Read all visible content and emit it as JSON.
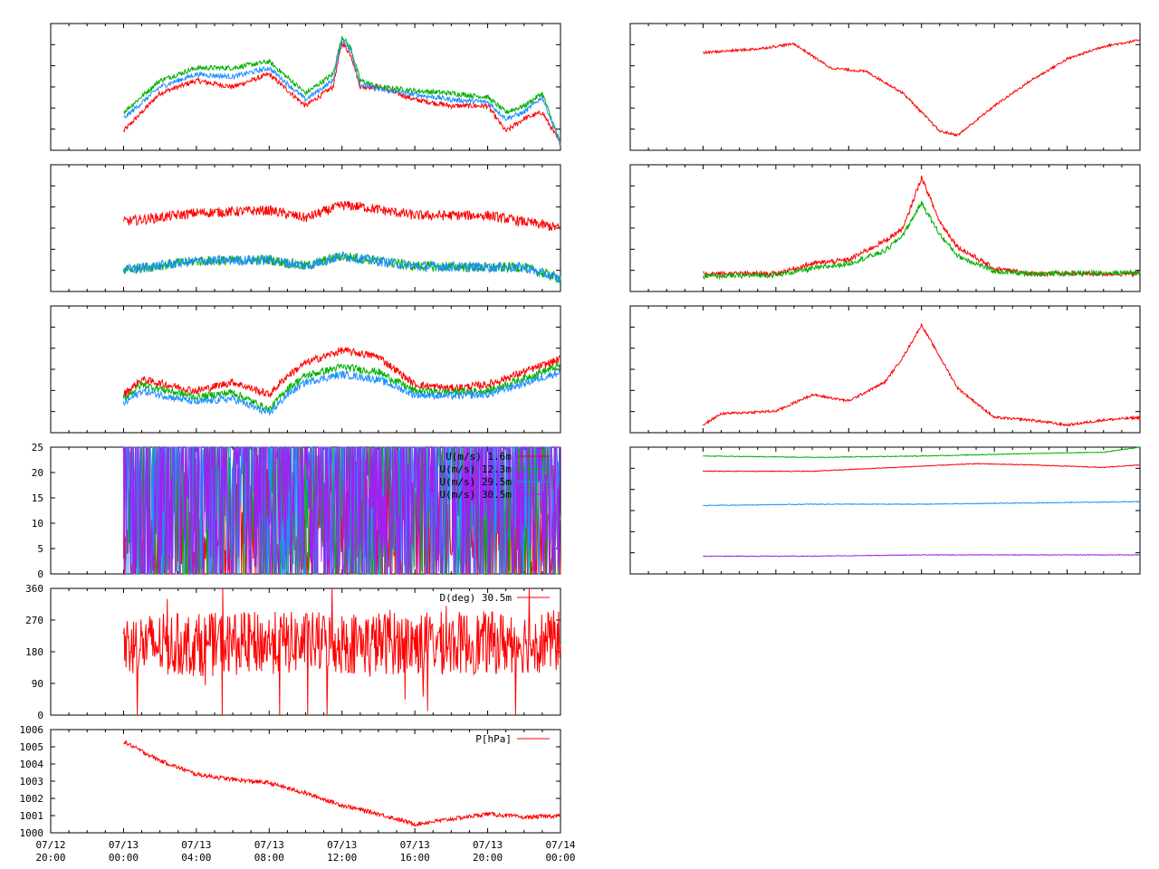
{
  "colors": {
    "red": "#ff0000",
    "green": "#00b000",
    "blue": "#1e90ff",
    "purple": "#a020f0",
    "frame": "#000000"
  },
  "chart_data": [
    {
      "type": "line",
      "panel": "left-1",
      "x_range": [
        "07/12 20:00",
        "07/14 00:00"
      ],
      "series": [
        {
          "color": "red",
          "x": [
            "07/13 00:00",
            "07/13 02:00",
            "07/13 04:00",
            "07/13 06:00",
            "07/13 08:00",
            "07/13 10:00",
            "07/13 11:30",
            "07/13 12:00",
            "07/13 12:30",
            "07/13 13:00",
            "07/13 14:00",
            "07/13 16:00",
            "07/13 18:00",
            "07/13 20:00",
            "07/13 21:00",
            "07/13 22:00",
            "07/13 23:00",
            "07/14 00:00"
          ],
          "values": [
            0.15,
            0.45,
            0.55,
            0.5,
            0.6,
            0.35,
            0.5,
            0.85,
            0.75,
            0.5,
            0.5,
            0.4,
            0.35,
            0.35,
            0.15,
            0.25,
            0.3,
            0.05
          ]
        },
        {
          "color": "green",
          "x": [
            "07/13 00:00",
            "07/13 02:00",
            "07/13 04:00",
            "07/13 06:00",
            "07/13 08:00",
            "07/13 10:00",
            "07/13 11:30",
            "07/13 12:00",
            "07/13 12:30",
            "07/13 13:00",
            "07/13 14:00",
            "07/13 16:00",
            "07/13 18:00",
            "07/13 20:00",
            "07/13 21:00",
            "07/13 22:00",
            "07/13 23:00",
            "07/14 00:00"
          ],
          "values": [
            0.3,
            0.55,
            0.65,
            0.65,
            0.7,
            0.45,
            0.6,
            0.9,
            0.8,
            0.55,
            0.5,
            0.47,
            0.45,
            0.42,
            0.3,
            0.35,
            0.45,
            0.05
          ]
        },
        {
          "color": "blue",
          "x": [
            "07/13 00:00",
            "07/13 02:00",
            "07/13 04:00",
            "07/13 06:00",
            "07/13 08:00",
            "07/13 10:00",
            "07/13 11:30",
            "07/13 12:00",
            "07/13 12:30",
            "07/13 13:00",
            "07/13 14:00",
            "07/13 16:00",
            "07/13 18:00",
            "07/13 20:00",
            "07/13 21:00",
            "07/13 22:00",
            "07/13 23:00",
            "07/14 00:00"
          ],
          "values": [
            0.25,
            0.5,
            0.6,
            0.58,
            0.65,
            0.4,
            0.55,
            0.88,
            0.78,
            0.52,
            0.48,
            0.44,
            0.4,
            0.38,
            0.25,
            0.3,
            0.42,
            0.05
          ]
        }
      ]
    },
    {
      "type": "line",
      "panel": "left-2",
      "x_range": [
        "07/12 20:00",
        "07/14 00:00"
      ],
      "series": [
        {
          "color": "red",
          "x": [
            "07/13 00:00",
            "07/13 04:00",
            "07/13 08:00",
            "07/13 10:00",
            "07/13 12:00",
            "07/13 13:00",
            "07/13 16:00",
            "07/13 20:00",
            "07/13 22:00",
            "07/14 00:00"
          ],
          "values": [
            0.55,
            0.62,
            0.64,
            0.58,
            0.68,
            0.67,
            0.6,
            0.6,
            0.55,
            0.5
          ]
        },
        {
          "color": "green",
          "x": [
            "07/13 00:00",
            "07/13 04:00",
            "07/13 08:00",
            "07/13 10:00",
            "07/13 12:00",
            "07/13 13:00",
            "07/13 16:00",
            "07/13 20:00",
            "07/13 22:00",
            "07/14 00:00"
          ],
          "values": [
            0.17,
            0.24,
            0.25,
            0.2,
            0.28,
            0.26,
            0.2,
            0.19,
            0.19,
            0.1
          ]
        },
        {
          "color": "blue",
          "x": [
            "07/13 00:00",
            "07/13 04:00",
            "07/13 08:00",
            "07/13 10:00",
            "07/13 12:00",
            "07/13 13:00",
            "07/13 16:00",
            "07/13 20:00",
            "07/13 22:00",
            "07/14 00:00"
          ],
          "values": [
            0.17,
            0.24,
            0.25,
            0.2,
            0.28,
            0.26,
            0.2,
            0.19,
            0.19,
            0.1
          ]
        }
      ]
    },
    {
      "type": "line",
      "panel": "left-3",
      "x_range": [
        "07/12 20:00",
        "07/14 00:00"
      ],
      "series": [
        {
          "color": "red",
          "x": [
            "07/13 00:00",
            "07/13 01:00",
            "07/13 04:00",
            "07/13 06:00",
            "07/13 08:00",
            "07/13 09:00",
            "07/13 10:00",
            "07/13 12:00",
            "07/13 14:00",
            "07/13 16:00",
            "07/13 18:00",
            "07/13 20:00",
            "07/13 22:00",
            "07/14 00:00"
          ],
          "values": [
            0.3,
            0.42,
            0.33,
            0.4,
            0.3,
            0.45,
            0.55,
            0.65,
            0.6,
            0.38,
            0.35,
            0.38,
            0.48,
            0.58
          ]
        },
        {
          "color": "green",
          "x": [
            "07/13 00:00",
            "07/13 01:00",
            "07/13 04:00",
            "07/13 06:00",
            "07/13 08:00",
            "07/13 09:00",
            "07/13 10:00",
            "07/13 12:00",
            "07/13 14:00",
            "07/13 16:00",
            "07/13 18:00",
            "07/13 20:00",
            "07/13 22:00",
            "07/14 00:00"
          ],
          "values": [
            0.27,
            0.38,
            0.28,
            0.32,
            0.18,
            0.35,
            0.45,
            0.52,
            0.48,
            0.33,
            0.32,
            0.33,
            0.43,
            0.53
          ]
        },
        {
          "color": "blue",
          "x": [
            "07/13 00:00",
            "07/13 01:00",
            "07/13 04:00",
            "07/13 06:00",
            "07/13 08:00",
            "07/13 09:00",
            "07/13 10:00",
            "07/13 12:00",
            "07/13 14:00",
            "07/13 16:00",
            "07/13 18:00",
            "07/13 20:00",
            "07/13 22:00",
            "07/14 00:00"
          ],
          "values": [
            0.23,
            0.33,
            0.24,
            0.27,
            0.15,
            0.3,
            0.4,
            0.46,
            0.42,
            0.3,
            0.29,
            0.3,
            0.39,
            0.48
          ]
        }
      ]
    },
    {
      "type": "line",
      "panel": "left-4",
      "x_range": [
        "07/12 20:00",
        "07/14 00:00"
      ],
      "ylim": [
        0,
        25
      ],
      "yticks": [
        "0",
        "5",
        "10",
        "15",
        "20",
        "25"
      ],
      "legend_position": "top-right",
      "series": [
        {
          "name": "U(m/s)  1.6m",
          "color": "red",
          "x": [
            "07/13 00:00",
            "07/13 04:00",
            "07/13 08:00",
            "07/13 12:00",
            "07/13 16:00",
            "07/13 20:00",
            "07/14 00:00"
          ],
          "values": [
            1,
            1.5,
            2,
            2,
            1.5,
            1,
            1
          ]
        },
        {
          "name": "U(m/s) 12.3m",
          "color": "green",
          "x": [
            "07/13 00:00",
            "07/13 04:00",
            "07/13 08:00",
            "07/13 12:00",
            "07/13 16:00",
            "07/13 20:00",
            "07/14 00:00"
          ],
          "values": [
            5,
            7,
            9,
            9,
            8,
            7,
            6
          ]
        },
        {
          "name": "U(m/s) 29.5m",
          "color": "blue",
          "x": [
            "07/13 00:00",
            "07/13 04:00",
            "07/13 08:00",
            "07/13 12:00",
            "07/13 16:00",
            "07/13 20:00",
            "07/14 00:00"
          ],
          "values": [
            5,
            7,
            9,
            9,
            8,
            7,
            6
          ]
        },
        {
          "name": "U(m/s) 30.5m",
          "color": "purple",
          "x": [
            "07/13 00:00",
            "07/13 04:00",
            "07/13 08:00",
            "07/13 12:00",
            "07/13 16:00",
            "07/13 20:00",
            "07/14 00:00"
          ],
          "values": [
            5,
            7,
            9,
            9,
            8,
            7,
            6
          ]
        }
      ]
    },
    {
      "type": "line",
      "panel": "left-5",
      "x_range": [
        "07/12 20:00",
        "07/14 00:00"
      ],
      "ylim": [
        0,
        360
      ],
      "yticks": [
        "0",
        "90",
        "180",
        "270",
        "360"
      ],
      "legend_position": "top-right",
      "series": [
        {
          "name": "D(deg)  30.5m",
          "color": "red",
          "x": [
            "07/13 00:00",
            "07/13 04:00",
            "07/13 08:00",
            "07/13 12:00",
            "07/13 16:00",
            "07/13 20:00",
            "07/14 00:00"
          ],
          "values": [
            200,
            200,
            205,
            205,
            205,
            205,
            210
          ]
        }
      ]
    },
    {
      "type": "line",
      "panel": "left-6",
      "x_range": [
        "07/12 20:00",
        "07/14 00:00"
      ],
      "ylim": [
        1000,
        1006
      ],
      "yticks": [
        "1000",
        "1001",
        "1002",
        "1003",
        "1004",
        "1005",
        "1006"
      ],
      "legend_position": "top-right",
      "series": [
        {
          "name": "P[hPa]",
          "color": "red",
          "x": [
            "07/13 00:00",
            "07/13 02:00",
            "07/13 04:00",
            "07/13 06:00",
            "07/13 08:00",
            "07/13 10:00",
            "07/13 12:00",
            "07/13 14:00",
            "07/13 16:00",
            "07/13 18:00",
            "07/13 20:00",
            "07/13 22:00",
            "07/14 00:00"
          ],
          "values": [
            1005.3,
            1004.2,
            1003.4,
            1003.1,
            1002.9,
            1002.3,
            1001.6,
            1001.1,
            1000.5,
            1000.8,
            1001.1,
            1000.9,
            1001.0
          ]
        }
      ]
    },
    {
      "type": "line",
      "panel": "right-1",
      "x_range": [
        "07/12 20:00",
        "07/14 00:00"
      ],
      "series": [
        {
          "color": "red",
          "x": [
            "07/13 00:00",
            "07/13 03:00",
            "07/13 05:00",
            "07/13 07:00",
            "07/13 09:00",
            "07/13 11:00",
            "07/13 13:00",
            "07/13 14:00",
            "07/13 16:00",
            "07/13 18:00",
            "07/13 20:00",
            "07/13 22:00",
            "07/14 00:00"
          ],
          "values": [
            0.77,
            0.8,
            0.84,
            0.65,
            0.62,
            0.45,
            0.15,
            0.12,
            0.35,
            0.55,
            0.72,
            0.82,
            0.87
          ]
        }
      ]
    },
    {
      "type": "line",
      "panel": "right-2",
      "x_range": [
        "07/12 20:00",
        "07/14 00:00"
      ],
      "series": [
        {
          "color": "red",
          "x": [
            "07/13 00:00",
            "07/13 04:00",
            "07/13 06:00",
            "07/13 08:00",
            "07/13 10:00",
            "07/13 11:00",
            "07/13 12:00",
            "07/13 13:00",
            "07/13 14:00",
            "07/13 16:00",
            "07/13 18:00",
            "07/14 00:00"
          ],
          "values": [
            0.14,
            0.14,
            0.22,
            0.25,
            0.4,
            0.5,
            0.9,
            0.55,
            0.35,
            0.18,
            0.14,
            0.14
          ]
        },
        {
          "color": "green",
          "x": [
            "07/13 00:00",
            "07/13 04:00",
            "07/13 06:00",
            "07/13 08:00",
            "07/13 10:00",
            "07/13 11:00",
            "07/13 12:00",
            "07/13 13:00",
            "07/13 14:00",
            "07/13 16:00",
            "07/13 18:00",
            "07/14 00:00"
          ],
          "values": [
            0.12,
            0.13,
            0.18,
            0.22,
            0.32,
            0.45,
            0.7,
            0.45,
            0.28,
            0.16,
            0.14,
            0.15
          ]
        }
      ]
    },
    {
      "type": "line",
      "panel": "right-3",
      "x_range": [
        "07/12 20:00",
        "07/14 00:00"
      ],
      "series": [
        {
          "color": "red",
          "x": [
            "07/13 00:00",
            "07/13 01:00",
            "07/13 04:00",
            "07/13 06:00",
            "07/13 08:00",
            "07/13 10:00",
            "07/13 11:00",
            "07/13 12:00",
            "07/13 13:00",
            "07/13 14:00",
            "07/13 16:00",
            "07/13 18:00",
            "07/13 20:00",
            "07/13 22:00",
            "07/14 00:00"
          ],
          "values": [
            0.06,
            0.15,
            0.17,
            0.3,
            0.25,
            0.4,
            0.6,
            0.85,
            0.6,
            0.35,
            0.12,
            0.1,
            0.06,
            0.1,
            0.12
          ]
        }
      ]
    },
    {
      "type": "line",
      "panel": "right-4",
      "x_range": [
        "07/12 20:00",
        "07/14 00:00"
      ],
      "series": [
        {
          "color": "green",
          "x": [
            "07/13 00:00",
            "07/13 06:00",
            "07/13 12:00",
            "07/13 18:00",
            "07/13 22:00",
            "07/14 00:00"
          ],
          "values": [
            0.93,
            0.92,
            0.93,
            0.95,
            0.96,
            1.0
          ]
        },
        {
          "color": "red",
          "x": [
            "07/13 00:00",
            "07/13 06:00",
            "07/13 12:00",
            "07/13 15:00",
            "07/13 18:00",
            "07/13 22:00",
            "07/14 00:00"
          ],
          "values": [
            0.81,
            0.81,
            0.85,
            0.87,
            0.86,
            0.84,
            0.86
          ]
        },
        {
          "color": "blue",
          "x": [
            "07/13 00:00",
            "07/13 06:00",
            "07/13 12:00",
            "07/13 18:00",
            "07/14 00:00"
          ],
          "values": [
            0.54,
            0.55,
            0.55,
            0.56,
            0.57
          ]
        },
        {
          "color": "purple",
          "x": [
            "07/13 00:00",
            "07/13 06:00",
            "07/13 12:00",
            "07/13 18:00",
            "07/14 00:00"
          ],
          "values": [
            0.14,
            0.14,
            0.15,
            0.15,
            0.15
          ]
        }
      ]
    }
  ],
  "x_axis": {
    "ticks": [
      {
        "date": "07/12",
        "time": "20:00"
      },
      {
        "date": "07/13",
        "time": "00:00"
      },
      {
        "date": "07/13",
        "time": "04:00"
      },
      {
        "date": "07/13",
        "time": "08:00"
      },
      {
        "date": "07/13",
        "time": "12:00"
      },
      {
        "date": "07/13",
        "time": "16:00"
      },
      {
        "date": "07/13",
        "time": "20:00"
      },
      {
        "date": "07/14",
        "time": "00:00"
      }
    ]
  }
}
